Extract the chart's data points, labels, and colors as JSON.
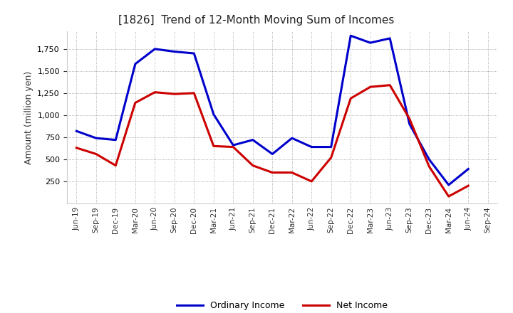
{
  "title": "[1826]  Trend of 12-Month Moving Sum of Incomes",
  "ylabel": "Amount (million yen)",
  "x_labels": [
    "Jun-19",
    "Sep-19",
    "Dec-19",
    "Mar-20",
    "Jun-20",
    "Sep-20",
    "Dec-20",
    "Mar-21",
    "Jun-21",
    "Sep-21",
    "Dec-21",
    "Mar-22",
    "Jun-22",
    "Sep-22",
    "Dec-22",
    "Mar-23",
    "Jun-23",
    "Sep-23",
    "Dec-23",
    "Mar-24",
    "Jun-24",
    "Sep-24"
  ],
  "ordinary_income": [
    820,
    740,
    720,
    1580,
    1750,
    1720,
    1700,
    1010,
    660,
    720,
    560,
    740,
    640,
    640,
    1900,
    1820,
    1870,
    900,
    500,
    210,
    390,
    null
  ],
  "net_income": [
    630,
    560,
    430,
    1140,
    1260,
    1240,
    1250,
    650,
    640,
    430,
    350,
    350,
    250,
    520,
    1190,
    1320,
    1340,
    960,
    420,
    80,
    200,
    null
  ],
  "ordinary_income_color": "#0000cc",
  "net_income_color": "#cc0000",
  "background_color": "#ffffff",
  "grid_color": "#999999",
  "ylim": [
    0,
    1950
  ],
  "yticks": [
    250,
    500,
    750,
    1000,
    1250,
    1500,
    1750
  ],
  "legend_labels": [
    "Ordinary Income",
    "Net Income"
  ],
  "line_width": 2.2
}
